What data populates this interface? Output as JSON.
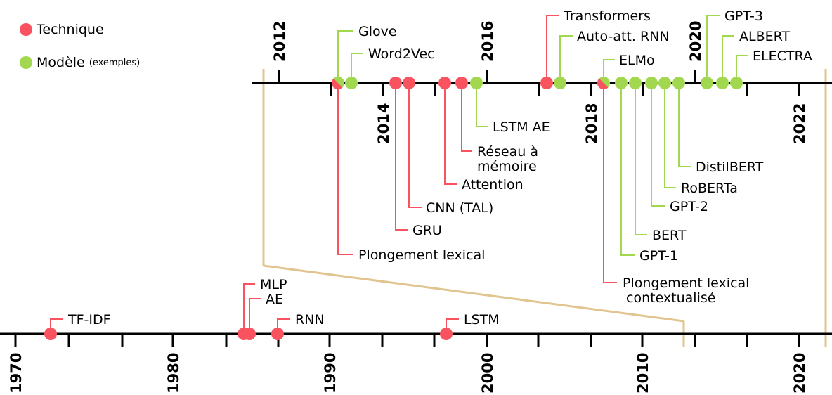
{
  "colors": {
    "technique": "#f9535f",
    "model": "#a1d84f",
    "axis": "#000000",
    "zoom": "#e2c48f"
  },
  "legend": {
    "technique_label": "Technique",
    "model_label": "Modèle",
    "model_note": "(exemples)"
  },
  "top_timeline": {
    "years_above": [
      "2012",
      "2016",
      "2020"
    ],
    "years_below": [
      "2014",
      "2018",
      "2022"
    ],
    "events": [
      {
        "label": "Glove",
        "kind": "model",
        "year": 2013.1
      },
      {
        "label": "Word2Vec",
        "kind": "model",
        "year": 2013.3
      },
      {
        "label": "Plongement lexical",
        "kind": "technique",
        "year": 2013.0
      },
      {
        "label": "GRU",
        "kind": "technique",
        "year": 2014.2
      },
      {
        "label": "CNN (TAL)",
        "kind": "technique",
        "year": 2014.4
      },
      {
        "label": "Attention",
        "kind": "technique",
        "year": 2014.9
      },
      {
        "label": "Réseau à mémoire",
        "kind": "technique",
        "year": 2015.2
      },
      {
        "label": "LSTM AE",
        "kind": "model",
        "year": 2015.4
      },
      {
        "label": "Transformers",
        "kind": "technique",
        "year": 2017.0
      },
      {
        "label": "Auto-att. RNN",
        "kind": "model",
        "year": 2017.2
      },
      {
        "label": "ELMo",
        "kind": "model",
        "year": 2018.2
      },
      {
        "label": "Plongement lexical contextualisé",
        "kind": "technique",
        "year": 2018.2
      },
      {
        "label": "GPT-1",
        "kind": "model",
        "year": 2018.5
      },
      {
        "label": "BERT",
        "kind": "model",
        "year": 2018.7
      },
      {
        "label": "GPT-2",
        "kind": "model",
        "year": 2019.1
      },
      {
        "label": "RoBERTa",
        "kind": "model",
        "year": 2019.3
      },
      {
        "label": "DistilBERT",
        "kind": "model",
        "year": 2019.5
      },
      {
        "label": "GPT-3",
        "kind": "model",
        "year": 2020.1
      },
      {
        "label": "ALBERT",
        "kind": "model",
        "year": 2020.3
      },
      {
        "label": "ELECTRA",
        "kind": "model",
        "year": 2020.5
      }
    ]
  },
  "bottom_timeline": {
    "years": [
      "1970",
      "1980",
      "1990",
      "2000",
      "2010",
      "2020"
    ],
    "events": [
      {
        "label": "TF-IDF",
        "kind": "technique",
        "year": 1972
      },
      {
        "label": "MLP",
        "kind": "technique",
        "year": 1986
      },
      {
        "label": "AE",
        "kind": "technique",
        "year": 1986
      },
      {
        "label": "RNN",
        "kind": "technique",
        "year": 1986
      },
      {
        "label": "LSTM",
        "kind": "technique",
        "year": 1997
      }
    ]
  }
}
